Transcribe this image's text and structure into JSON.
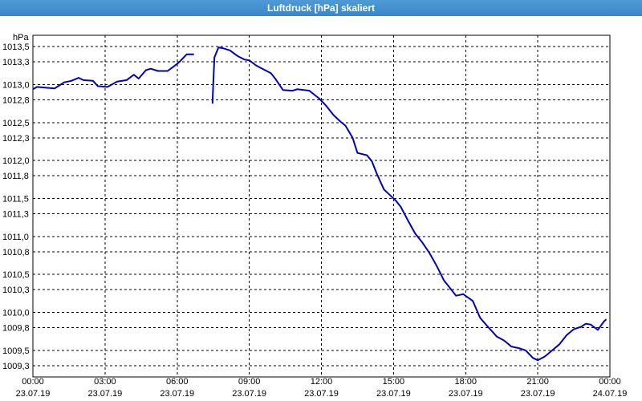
{
  "window": {
    "title": "Luftdruck [hPa] skaliert"
  },
  "chart_data": {
    "type": "line",
    "title": "Luftdruck [hPa] skaliert",
    "ylabel": "hPa",
    "xlabel": "",
    "x_unit": "hours since 23.07.19 00:00",
    "xlim": [
      0,
      24
    ],
    "ylim": [
      1009.15,
      1013.65
    ],
    "grid": true,
    "y_ticks": [
      {
        "v": 1009.3,
        "label": "1009,3"
      },
      {
        "v": 1009.5,
        "label": "1009,5"
      },
      {
        "v": 1009.8,
        "label": "1009,8"
      },
      {
        "v": 1010.0,
        "label": "1010,0"
      },
      {
        "v": 1010.3,
        "label": "1010,3"
      },
      {
        "v": 1010.5,
        "label": "1010,5"
      },
      {
        "v": 1010.8,
        "label": "1010,8"
      },
      {
        "v": 1011.0,
        "label": "1011,0"
      },
      {
        "v": 1011.3,
        "label": "1011,3"
      },
      {
        "v": 1011.5,
        "label": "1011,5"
      },
      {
        "v": 1011.8,
        "label": "1011,8"
      },
      {
        "v": 1012.0,
        "label": "1012,0"
      },
      {
        "v": 1012.3,
        "label": "1012,3"
      },
      {
        "v": 1012.5,
        "label": "1012,5"
      },
      {
        "v": 1012.8,
        "label": "1012,8"
      },
      {
        "v": 1013.0,
        "label": "1013,0"
      },
      {
        "v": 1013.3,
        "label": "1013,3"
      },
      {
        "v": 1013.5,
        "label": "1013,5"
      }
    ],
    "x_ticks": [
      {
        "v": 0,
        "time": "00:00",
        "date": "23.07.19"
      },
      {
        "v": 3,
        "time": "03:00",
        "date": "23.07.19"
      },
      {
        "v": 6,
        "time": "06:00",
        "date": "23.07.19"
      },
      {
        "v": 9,
        "time": "09:00",
        "date": "23.07.19"
      },
      {
        "v": 12,
        "time": "12:00",
        "date": "23.07.19"
      },
      {
        "v": 15,
        "time": "15:00",
        "date": "23.07.19"
      },
      {
        "v": 18,
        "time": "18:00",
        "date": "23.07.19"
      },
      {
        "v": 21,
        "time": "21:00",
        "date": "23.07.19"
      },
      {
        "v": 24,
        "time": "00:00",
        "date": "24.07.19"
      }
    ],
    "colors": {
      "line": "#0000c0",
      "grid": "#000000",
      "title_bar": "#3f8ccc"
    },
    "series": [
      {
        "segments": [
          [
            [
              0.0,
              1012.94
            ],
            [
              0.17,
              1012.97
            ],
            [
              0.5,
              1012.96
            ],
            [
              0.9,
              1012.95
            ],
            [
              1.1,
              1012.99
            ],
            [
              1.3,
              1013.03
            ],
            [
              1.6,
              1013.05
            ],
            [
              1.9,
              1013.09
            ],
            [
              2.1,
              1013.06
            ],
            [
              2.5,
              1013.05
            ],
            [
              2.7,
              1012.98
            ],
            [
              3.1,
              1012.97
            ],
            [
              3.5,
              1013.04
            ],
            [
              3.9,
              1013.06
            ],
            [
              4.2,
              1013.13
            ],
            [
              4.4,
              1013.08
            ],
            [
              4.7,
              1013.19
            ],
            [
              4.9,
              1013.21
            ],
            [
              5.2,
              1013.18
            ],
            [
              5.6,
              1013.18
            ],
            [
              5.9,
              1013.25
            ],
            [
              6.1,
              1013.3
            ],
            [
              6.4,
              1013.4
            ],
            [
              6.7,
              1013.4
            ]
          ],
          [
            [
              7.47,
              1012.75
            ],
            [
              7.5,
              1013.0
            ],
            [
              7.55,
              1013.36
            ],
            [
              7.72,
              1013.49
            ],
            [
              7.9,
              1013.48
            ],
            [
              8.2,
              1013.45
            ],
            [
              8.5,
              1013.38
            ],
            [
              8.8,
              1013.33
            ],
            [
              9.0,
              1013.32
            ],
            [
              9.3,
              1013.25
            ],
            [
              9.6,
              1013.2
            ],
            [
              9.9,
              1013.15
            ],
            [
              10.1,
              1013.07
            ],
            [
              10.4,
              1012.93
            ],
            [
              10.8,
              1012.92
            ],
            [
              11.0,
              1012.94
            ],
            [
              11.5,
              1012.92
            ],
            [
              11.9,
              1012.82
            ],
            [
              12.2,
              1012.72
            ],
            [
              12.5,
              1012.6
            ],
            [
              12.8,
              1012.51
            ],
            [
              13.0,
              1012.46
            ],
            [
              13.3,
              1012.3
            ],
            [
              13.5,
              1012.1
            ],
            [
              13.9,
              1012.07
            ],
            [
              14.1,
              1011.99
            ],
            [
              14.3,
              1011.83
            ],
            [
              14.6,
              1011.62
            ],
            [
              14.9,
              1011.53
            ],
            [
              15.1,
              1011.47
            ],
            [
              15.3,
              1011.39
            ],
            [
              15.6,
              1011.21
            ],
            [
              15.9,
              1011.04
            ],
            [
              16.2,
              1010.92
            ],
            [
              16.5,
              1010.78
            ],
            [
              16.8,
              1010.61
            ],
            [
              17.1,
              1010.42
            ],
            [
              17.3,
              1010.34
            ],
            [
              17.6,
              1010.22
            ],
            [
              17.9,
              1010.24
            ],
            [
              18.3,
              1010.15
            ],
            [
              18.6,
              1009.93
            ],
            [
              18.9,
              1009.82
            ],
            [
              19.3,
              1009.68
            ],
            [
              19.6,
              1009.63
            ],
            [
              19.9,
              1009.55
            ],
            [
              20.2,
              1009.53
            ],
            [
              20.5,
              1009.5
            ],
            [
              20.8,
              1009.4
            ],
            [
              21.0,
              1009.37
            ],
            [
              21.3,
              1009.42
            ],
            [
              21.6,
              1009.5
            ],
            [
              21.9,
              1009.58
            ],
            [
              22.2,
              1009.7
            ],
            [
              22.5,
              1009.78
            ],
            [
              22.8,
              1009.81
            ],
            [
              23.0,
              1009.85
            ],
            [
              23.2,
              1009.84
            ],
            [
              23.5,
              1009.77
            ],
            [
              23.75,
              1009.88
            ],
            [
              23.85,
              1009.91
            ]
          ]
        ]
      }
    ]
  }
}
